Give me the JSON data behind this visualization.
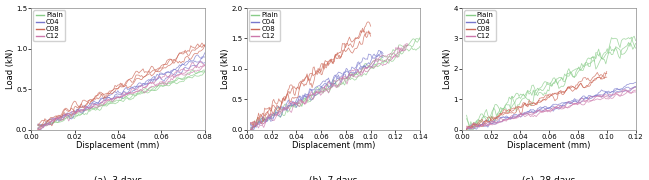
{
  "subplots": [
    {
      "title": "(a)  3 days",
      "xlabel": "Displacement (mm)",
      "ylabel": "Load (kN)",
      "xlim": [
        0.0,
        0.08
      ],
      "ylim": [
        0.0,
        1.5
      ],
      "xticks": [
        0.0,
        0.02,
        0.04,
        0.06,
        0.08
      ],
      "yticks": [
        0.0,
        0.5,
        1.0,
        1.5
      ],
      "series": {
        "Plain": {
          "color": "#88cc88",
          "slope": 9.0,
          "noise_amp": 0.035,
          "xmax": 0.08,
          "n_lines": 3
        },
        "C04": {
          "color": "#7777cc",
          "slope": 11.0,
          "noise_amp": 0.04,
          "xmax": 0.08,
          "n_lines": 3
        },
        "C08": {
          "color": "#cc6655",
          "slope": 13.0,
          "noise_amp": 0.045,
          "xmax": 0.08,
          "n_lines": 3
        },
        "C12": {
          "color": "#cc77aa",
          "slope": 10.0,
          "noise_amp": 0.038,
          "xmax": 0.08,
          "n_lines": 3
        }
      }
    },
    {
      "title": "(b)  7 days",
      "xlabel": "Displacement (mm)",
      "ylabel": "Load (kN)",
      "xlim": [
        0.0,
        0.14
      ],
      "ylim": [
        0.0,
        2.0
      ],
      "xticks": [
        0.0,
        0.02,
        0.04,
        0.06,
        0.08,
        0.1,
        0.12,
        0.14
      ],
      "yticks": [
        0.0,
        0.5,
        1.0,
        1.5,
        2.0
      ],
      "series": {
        "Plain": {
          "color": "#88cc88",
          "slope": 10.5,
          "noise_amp": 0.045,
          "xmax": 0.14,
          "n_lines": 3
        },
        "C04": {
          "color": "#7777cc",
          "slope": 11.5,
          "noise_amp": 0.05,
          "xmax": 0.11,
          "n_lines": 3
        },
        "C08": {
          "color": "#cc6655",
          "slope": 16.5,
          "noise_amp": 0.055,
          "xmax": 0.1,
          "n_lines": 3
        },
        "C12": {
          "color": "#cc77aa",
          "slope": 10.5,
          "noise_amp": 0.048,
          "xmax": 0.13,
          "n_lines": 3
        }
      }
    },
    {
      "title": "(c)  28 days",
      "xlabel": "Displacement (mm)",
      "ylabel": "Load (kN)",
      "xlim": [
        0.0,
        0.12
      ],
      "ylim": [
        0.0,
        4.0
      ],
      "xticks": [
        0.0,
        0.02,
        0.04,
        0.06,
        0.08,
        0.1,
        0.12
      ],
      "yticks": [
        0,
        1,
        2,
        3,
        4
      ],
      "series": {
        "Plain": {
          "color": "#88cc88",
          "slope": 25.0,
          "noise_amp": 0.08,
          "xmax": 0.12,
          "n_lines": 3
        },
        "C04": {
          "color": "#7777cc",
          "slope": 12.0,
          "noise_amp": 0.05,
          "xmax": 0.12,
          "n_lines": 3
        },
        "C08": {
          "color": "#cc6655",
          "slope": 18.0,
          "noise_amp": 0.06,
          "xmax": 0.1,
          "n_lines": 3
        },
        "C12": {
          "color": "#cc77aa",
          "slope": 11.0,
          "noise_amp": 0.05,
          "xmax": 0.12,
          "n_lines": 3
        }
      }
    }
  ],
  "legend_labels": [
    "Plain",
    "C04",
    "C08",
    "C12"
  ],
  "legend_colors": [
    "#88cc88",
    "#7777cc",
    "#cc6655",
    "#cc77aa"
  ],
  "background_color": "#ffffff",
  "fontsize_title": 6.5,
  "fontsize_labels": 6,
  "fontsize_ticks": 5,
  "fontsize_legend": 5
}
